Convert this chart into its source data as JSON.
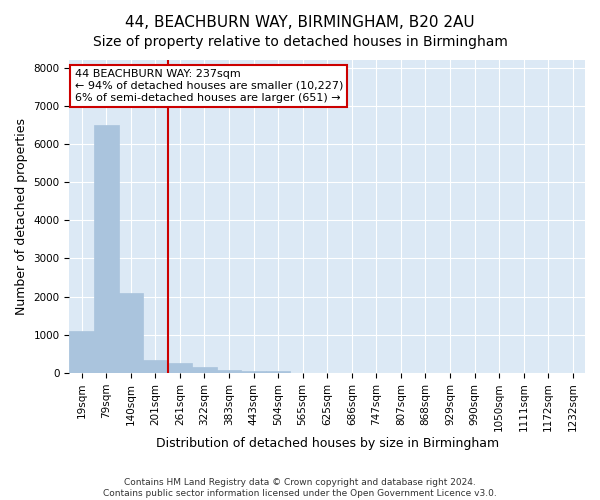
{
  "title": "44, BEACHBURN WAY, BIRMINGHAM, B20 2AU",
  "subtitle": "Size of property relative to detached houses in Birmingham",
  "xlabel": "Distribution of detached houses by size in Birmingham",
  "ylabel": "Number of detached properties",
  "bin_labels": [
    "19sqm",
    "79sqm",
    "140sqm",
    "201sqm",
    "261sqm",
    "322sqm",
    "383sqm",
    "443sqm",
    "504sqm",
    "565sqm",
    "625sqm",
    "686sqm",
    "747sqm",
    "807sqm",
    "868sqm",
    "929sqm",
    "990sqm",
    "1050sqm",
    "1111sqm",
    "1172sqm",
    "1232sqm"
  ],
  "bar_values": [
    1100,
    6500,
    2100,
    350,
    250,
    150,
    80,
    50,
    50,
    0,
    0,
    0,
    0,
    0,
    0,
    0,
    0,
    0,
    0,
    0,
    0
  ],
  "bar_color": "#aac4dd",
  "bar_edge_color": "#aac4dd",
  "bg_color": "#dce9f5",
  "grid_color": "#ffffff",
  "vline_x_index": 4,
  "vline_color": "#cc0000",
  "annotation_line1": "44 BEACHBURN WAY: 237sqm",
  "annotation_line2": "← 94% of detached houses are smaller (10,227)",
  "annotation_line3": "6% of semi-detached houses are larger (651) →",
  "annotation_box_color": "#ffffff",
  "annotation_box_edge": "#cc0000",
  "ylim": [
    0,
    8200
  ],
  "yticks": [
    0,
    1000,
    2000,
    3000,
    4000,
    5000,
    6000,
    7000,
    8000
  ],
  "footer1": "Contains HM Land Registry data © Crown copyright and database right 2024.",
  "footer2": "Contains public sector information licensed under the Open Government Licence v3.0.",
  "title_fontsize": 11,
  "tick_fontsize": 7.5,
  "ylabel_fontsize": 9,
  "xlabel_fontsize": 9,
  "annot_fontsize": 8
}
